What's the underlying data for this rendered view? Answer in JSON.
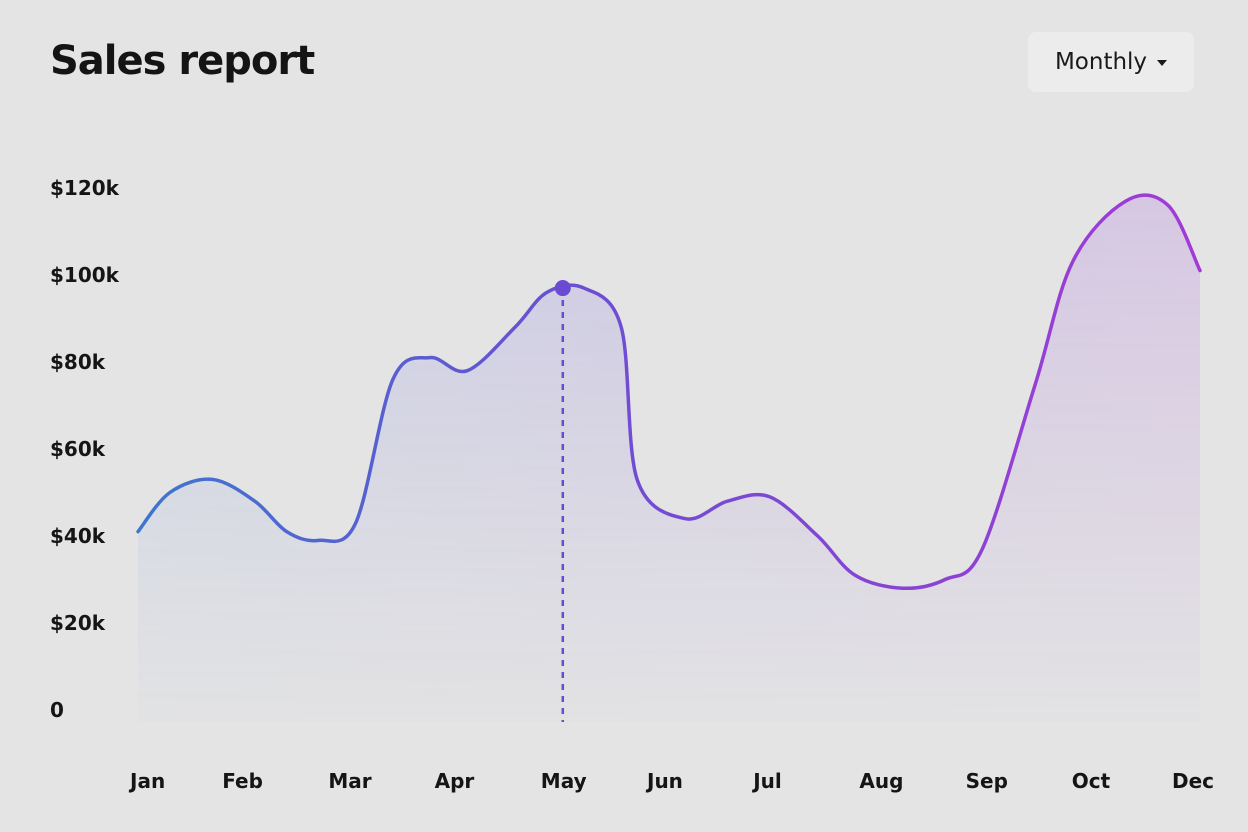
{
  "header": {
    "title": "Sales report",
    "period_select": {
      "value": "Monthly",
      "icon": "caret-down-icon"
    }
  },
  "colors": {
    "background": "#e4e4e4",
    "line_start": "#3f76cf",
    "line_mid": "#6a4fd2",
    "line_end": "#a23ad6",
    "marker": "#6a4ad3"
  },
  "chart_data": {
    "type": "area",
    "title": "Sales report",
    "xlabel": "",
    "ylabel": "",
    "ylim": [
      0,
      120000
    ],
    "yticks": [
      {
        "value": 0,
        "label": "0"
      },
      {
        "value": 20000,
        "label": "$20k"
      },
      {
        "value": 40000,
        "label": "$40k"
      },
      {
        "value": 60000,
        "label": "$60k"
      },
      {
        "value": 80000,
        "label": "$80k"
      },
      {
        "value": 100000,
        "label": "$100k"
      },
      {
        "value": 120000,
        "label": "$120k"
      }
    ],
    "categories": [
      "Jan",
      "Feb",
      "Mar",
      "Apr",
      "May",
      "Jun",
      "Jul",
      "Aug",
      "Sep",
      "Oct",
      "Dec"
    ],
    "grid": false,
    "highlight": {
      "category": "May",
      "value": 97000
    },
    "series": [
      {
        "points": [
          [
            0.0,
            41000
          ],
          [
            0.3,
            50000
          ],
          [
            0.7,
            53000
          ],
          [
            1.1,
            48000
          ],
          [
            1.4,
            41000
          ],
          [
            1.7,
            39000
          ],
          [
            2.05,
            43000
          ],
          [
            2.4,
            76000
          ],
          [
            2.75,
            81000
          ],
          [
            3.1,
            78000
          ],
          [
            3.55,
            88000
          ],
          [
            3.85,
            96000
          ],
          [
            4.2,
            97000
          ],
          [
            4.55,
            88000
          ],
          [
            4.7,
            53000
          ],
          [
            5.15,
            44000
          ],
          [
            5.55,
            48000
          ],
          [
            5.95,
            49000
          ],
          [
            6.4,
            40000
          ],
          [
            6.75,
            31000
          ],
          [
            7.2,
            28000
          ],
          [
            7.6,
            30000
          ],
          [
            7.95,
            37000
          ],
          [
            8.45,
            75000
          ],
          [
            8.8,
            103000
          ],
          [
            9.3,
            117000
          ],
          [
            9.7,
            116000
          ],
          [
            10.0,
            101000
          ]
        ]
      }
    ]
  }
}
